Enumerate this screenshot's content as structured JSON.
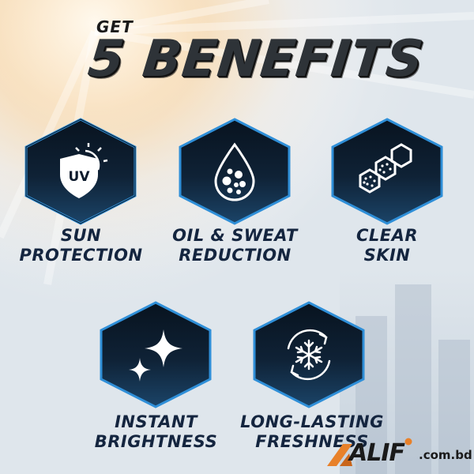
{
  "header": {
    "get": "GET",
    "title": "5 BENEFITS"
  },
  "benefits": [
    {
      "label_line1": "SUN",
      "label_line2": "PROTECTION",
      "icon": "uv-shield-sun-icon",
      "icon_text": "UV"
    },
    {
      "label_line1": "OIL & SWEAT",
      "label_line2": "REDUCTION",
      "icon": "droplet-bubbles-icon"
    },
    {
      "label_line1": "CLEAR",
      "label_line2": "SKIN",
      "icon": "skin-cells-hexagon-icon"
    },
    {
      "label_line1": "INSTANT",
      "label_line2": "BRIGHTNESS",
      "icon": "sparkle-stars-icon"
    },
    {
      "label_line1": "LONG-LASTING",
      "label_line2": "FRESHNESS",
      "icon": "snowflake-cycle-icon"
    }
  ],
  "brand": {
    "name": "ALIF",
    "domain": ".com.bd"
  },
  "colors": {
    "hex_fill": "#0c1a2c",
    "hex_glow": "#2f8fd8",
    "label_text": "#14253f",
    "brand_orange": "#e8812a"
  }
}
